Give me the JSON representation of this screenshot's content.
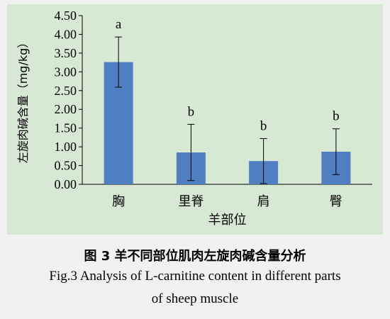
{
  "chart_data": {
    "type": "bar",
    "categories": [
      "胸",
      "里脊",
      "肩",
      "臀"
    ],
    "values": [
      3.26,
      0.85,
      0.62,
      0.87
    ],
    "errors": [
      0.67,
      0.75,
      0.6,
      0.61
    ],
    "significance": [
      "a",
      "b",
      "b",
      "b"
    ],
    "xlabel": "羊部位",
    "ylabel": "左旋肉碱含量（mg/kg）",
    "ylim": [
      0,
      4.5
    ],
    "yticks": [
      "0.00",
      "0.50",
      "1.00",
      "1.50",
      "2.00",
      "2.50",
      "3.00",
      "3.50",
      "4.00",
      "4.50"
    ],
    "bar_color": "#4f7fc0",
    "panel_color": "#d7e8d5",
    "grid": false
  },
  "caption": {
    "cn": "图 3  羊不同部位肌肉左旋肉碱含量分析",
    "en_line1": "Fig.3 Analysis of L-carnitine content in different parts",
    "en_line2": "of sheep muscle"
  }
}
